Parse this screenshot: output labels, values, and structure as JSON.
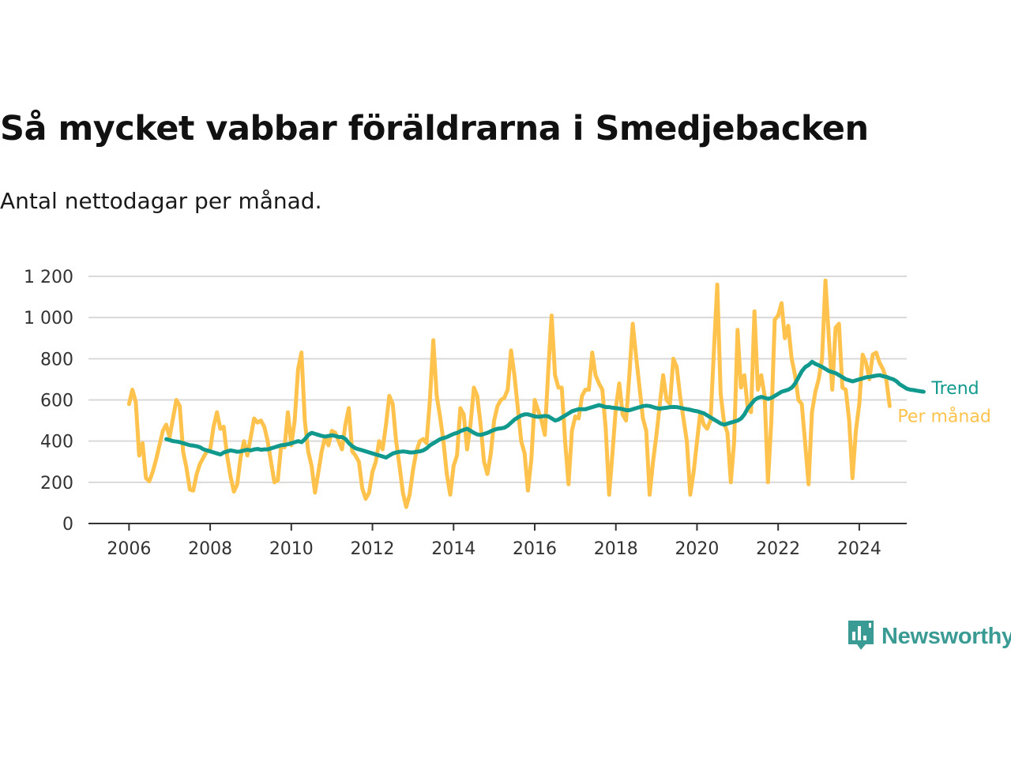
{
  "title": "Så mycket vabbar föräldrarna i Smedjebacken",
  "subtitle": "Antal nettodagar per månad.",
  "brand": {
    "name": "Newsworthy",
    "icon": "chart-bubble-icon",
    "color": "#3a9b94"
  },
  "chart_data": {
    "type": "line",
    "x_unit": "year",
    "ylim": [
      0,
      1200
    ],
    "y_ticks": [
      0,
      200,
      400,
      600,
      800,
      1000,
      1200
    ],
    "y_tick_labels": [
      "0",
      "200",
      "400",
      "600",
      "800",
      "1 000",
      "1 200"
    ],
    "x_ticks": [
      2006,
      2008,
      2010,
      2012,
      2014,
      2016,
      2018,
      2020,
      2022,
      2024
    ],
    "x_tick_labels": [
      "2006",
      "2008",
      "2010",
      "2012",
      "2014",
      "2016",
      "2018",
      "2020",
      "2022",
      "2024"
    ],
    "grid": true,
    "series": [
      {
        "name": "Per månad",
        "color": "#ffc34d",
        "start": 2006.0,
        "step": 0.0833333,
        "values": [
          580,
          650,
          590,
          330,
          390,
          220,
          205,
          250,
          310,
          380,
          450,
          480,
          420,
          510,
          600,
          570,
          350,
          270,
          165,
          160,
          240,
          290,
          320,
          350,
          360,
          470,
          540,
          460,
          470,
          330,
          230,
          155,
          190,
          320,
          400,
          330,
          420,
          510,
          490,
          500,
          470,
          400,
          300,
          200,
          210,
          380,
          370,
          540,
          380,
          500,
          750,
          830,
          500,
          350,
          280,
          150,
          250,
          350,
          420,
          380,
          450,
          440,
          400,
          360,
          480,
          560,
          350,
          330,
          300,
          170,
          120,
          150,
          250,
          300,
          400,
          360,
          480,
          620,
          580,
          400,
          280,
          150,
          80,
          140,
          260,
          350,
          400,
          410,
          390,
          600,
          890,
          620,
          520,
          400,
          240,
          140,
          280,
          330,
          560,
          530,
          360,
          480,
          660,
          620,
          480,
          300,
          240,
          340,
          500,
          570,
          600,
          610,
          650,
          840,
          720,
          560,
          400,
          340,
          160,
          310,
          600,
          550,
          500,
          430,
          740,
          1010,
          720,
          660,
          660,
          400,
          190,
          450,
          520,
          510,
          620,
          650,
          650,
          830,
          720,
          680,
          650,
          460,
          140,
          340,
          560,
          680,
          530,
          500,
          720,
          970,
          810,
          660,
          510,
          450,
          140,
          300,
          430,
          580,
          720,
          600,
          580,
          800,
          760,
          620,
          510,
          400,
          140,
          250,
          400,
          540,
          480,
          460,
          500,
          840,
          1160,
          630,
          490,
          440,
          200,
          400,
          940,
          660,
          720,
          560,
          540,
          1030,
          650,
          720,
          620,
          200,
          500,
          990,
          1010,
          1070,
          900,
          960,
          800,
          720,
          600,
          580,
          390,
          190,
          540,
          640,
          700,
          800,
          1180,
          900,
          650,
          950,
          970,
          660,
          650,
          500,
          220,
          450,
          580,
          820,
          780,
          700,
          820,
          830,
          780,
          750,
          700,
          570
        ]
      },
      {
        "name": "Trend",
        "color": "#11998e",
        "start": 2006.92,
        "step": 0.0833333,
        "values": [
          410,
          405,
          400,
          398,
          395,
          390,
          385,
          380,
          378,
          375,
          370,
          360,
          355,
          350,
          345,
          340,
          335,
          345,
          350,
          355,
          352,
          348,
          350,
          355,
          358,
          355,
          360,
          362,
          358,
          360,
          360,
          365,
          370,
          375,
          380,
          382,
          385,
          390,
          395,
          400,
          395,
          410,
          430,
          440,
          435,
          430,
          425,
          422,
          425,
          428,
          425,
          420,
          420,
          410,
          390,
          375,
          365,
          360,
          355,
          350,
          345,
          340,
          335,
          330,
          325,
          320,
          330,
          340,
          345,
          348,
          350,
          348,
          345,
          345,
          348,
          350,
          355,
          365,
          380,
          390,
          400,
          410,
          415,
          420,
          428,
          435,
          440,
          448,
          455,
          460,
          450,
          440,
          432,
          430,
          435,
          440,
          448,
          455,
          460,
          462,
          465,
          475,
          490,
          505,
          515,
          525,
          530,
          530,
          525,
          520,
          518,
          520,
          522,
          520,
          510,
          500,
          505,
          515,
          525,
          535,
          545,
          550,
          555,
          555,
          555,
          560,
          565,
          570,
          575,
          570,
          565,
          565,
          562,
          560,
          558,
          555,
          550,
          550,
          555,
          560,
          565,
          570,
          572,
          570,
          565,
          560,
          558,
          560,
          562,
          565,
          566,
          565,
          562,
          558,
          555,
          552,
          548,
          545,
          540,
          535,
          525,
          515,
          505,
          495,
          485,
          480,
          485,
          490,
          495,
          500,
          510,
          530,
          560,
          580,
          600,
          610,
          615,
          610,
          605,
          610,
          620,
          630,
          640,
          645,
          650,
          660,
          680,
          710,
          740,
          760,
          770,
          785,
          775,
          768,
          760,
          750,
          740,
          735,
          730,
          720,
          710,
          700,
          695,
          690,
          695,
          700,
          705,
          710,
          712,
          715,
          718,
          720,
          715,
          712,
          705,
          700,
          690,
          675,
          665,
          655,
          650,
          648,
          645,
          642,
          640
        ]
      }
    ]
  }
}
